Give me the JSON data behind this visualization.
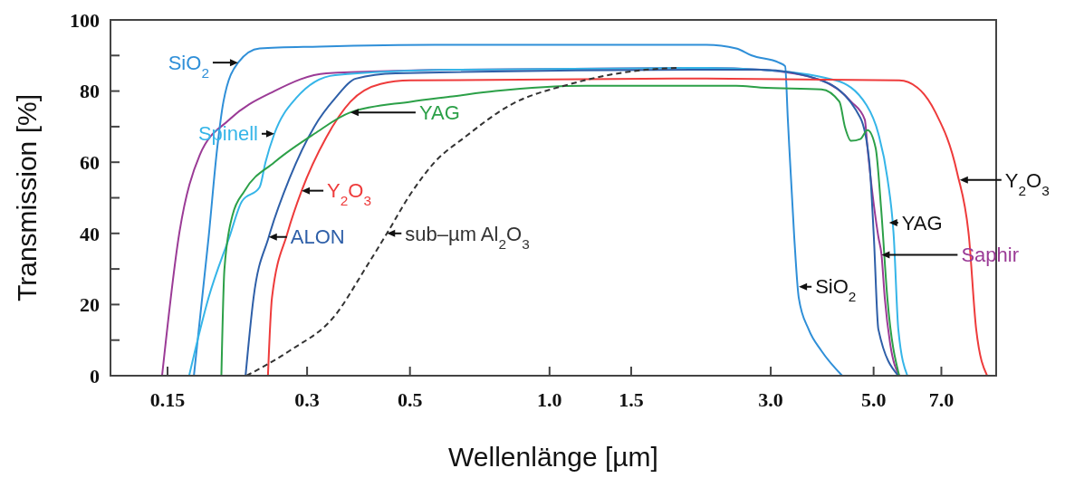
{
  "chart_data": {
    "type": "line",
    "xlabel": "Wellenlänge [µm]",
    "ylabel": "Transmission [%]",
    "log": "x",
    "xlim": [
      0.113,
      9.19
    ],
    "ylim": [
      0,
      100
    ],
    "xticks": [
      0.15,
      0.3,
      0.5,
      {
        "value": 1,
        "label": "1.0"
      },
      1.5,
      {
        "value": 3,
        "label": "3.0"
      },
      {
        "value": 5,
        "label": "5.0"
      },
      {
        "value": 7,
        "label": "7.0"
      }
    ],
    "yticks": [
      0,
      {
        "value": 10,
        "label": null
      },
      20,
      {
        "value": 30,
        "label": null
      },
      40,
      {
        "value": 50,
        "label": null
      },
      60,
      {
        "value": 70,
        "label": null
      },
      80,
      {
        "value": 90,
        "label": null
      },
      100
    ],
    "grid": false,
    "series": [
      {
        "name": "Saphir",
        "color": "#9b3b96",
        "x": [
          0.146,
          0.159,
          0.176,
          0.204,
          0.255,
          0.33,
          0.618,
          2.18,
          2.854,
          3.858,
          4.474,
          4.786,
          4.851,
          5.12,
          5.2,
          5.284,
          5.428,
          5.678
        ],
        "values": [
          0,
          40,
          62,
          72,
          80,
          85,
          86,
          86.5,
          86,
          83,
          77,
          72,
          64,
          39,
          34,
          22,
          9,
          0
        ]
      },
      {
        "name": "SiO$_{2}$",
        "color": "#2f8fd8",
        "x": [
          0.171,
          0.184,
          0.192,
          0.198,
          0.213,
          0.237,
          0.319,
          0.565,
          2.179,
          2.527,
          2.729,
          3.123,
          3.222,
          3.266,
          3.371,
          3.447,
          3.622,
          3.858,
          4.278
        ],
        "values": [
          0,
          39,
          64,
          77,
          88,
          92,
          92.5,
          93,
          93,
          92,
          90,
          88,
          87,
          72,
          39,
          22,
          13,
          7,
          0
        ]
      },
      {
        "name": "Spinell",
        "color": "#35b5e8",
        "x": [
          0.167,
          0.184,
          0.204,
          0.217,
          0.237,
          0.244,
          0.255,
          0.284,
          0.345,
          0.618,
          2.18,
          2.854,
          4.145,
          4.829,
          5.12,
          5.355,
          5.527,
          5.653,
          5.913
        ],
        "values": [
          0,
          22,
          39,
          49,
          53,
          60,
          68,
          78,
          84.5,
          86,
          86.5,
          86,
          83,
          76,
          68,
          55.5,
          39,
          13,
          0
        ]
      },
      {
        "name": "ALON",
        "color": "#2e5fa8",
        "x": [
          0.221,
          0.23,
          0.248,
          0.275,
          0.311,
          0.345,
          0.382,
          0.466,
          2.18,
          2.854,
          3.858,
          4.68,
          4.895,
          5.006,
          5.12,
          5.653
        ],
        "values": [
          0,
          22,
          39,
          55.5,
          70,
          78,
          83.5,
          85,
          86,
          86,
          83,
          72.5,
          60,
          39,
          13,
          0
        ]
      },
      {
        "name": "Y$_{2}$O$_{3}$",
        "color": "#ee3b3b",
        "x": [
          0.247,
          0.252,
          0.272,
          0.292,
          0.33,
          0.372,
          0.432,
          0.501,
          2.18,
          5.678,
          6.213,
          6.799,
          7.572,
          8.028,
          8.322,
          8.786
        ],
        "values": [
          0,
          22,
          40,
          52,
          67,
          77,
          82,
          83,
          83.5,
          83,
          81,
          74,
          57,
          39,
          13,
          0
        ]
      },
      {
        "name": "YAG",
        "color": "#2ca048",
        "x": [
          0.196,
          0.199,
          0.207,
          0.22,
          0.255,
          0.311,
          0.372,
          0.501,
          0.618,
          0.764,
          1.198,
          2.527,
          2.854,
          3.858,
          4.22,
          4.335,
          4.474,
          4.68,
          4.851,
          5.051,
          5.19,
          5.355,
          5.678
        ],
        "values": [
          0,
          30,
          45,
          52,
          60,
          68,
          74,
          77,
          78.5,
          80,
          81.5,
          81.5,
          81,
          80.5,
          77,
          70,
          66,
          66.5,
          69,
          64,
          47,
          21.6,
          0
        ]
      },
      {
        "name": "sub–µm Al$_{2}$O$_{3}$",
        "color": "#333333",
        "line_style": "dashed",
        "x": [
          0.222,
          0.275,
          0.345,
          0.4,
          0.446,
          0.501,
          0.565,
          0.656,
          0.821,
          1.11,
          1.612,
          1.878
        ],
        "values": [
          0,
          7,
          17,
          30,
          40,
          51,
          60,
          67,
          76,
          82,
          86,
          86.5
        ]
      }
    ],
    "annotations": [
      {
        "text": "SiO$_{2}$",
        "x": 3.45,
        "y": 25
      },
      {
        "text": "YAG",
        "x": 5.4,
        "y": 43
      },
      {
        "text": "Y$_{2}$O$_{3}$",
        "x": 7.67,
        "y": 55
      }
    ]
  }
}
